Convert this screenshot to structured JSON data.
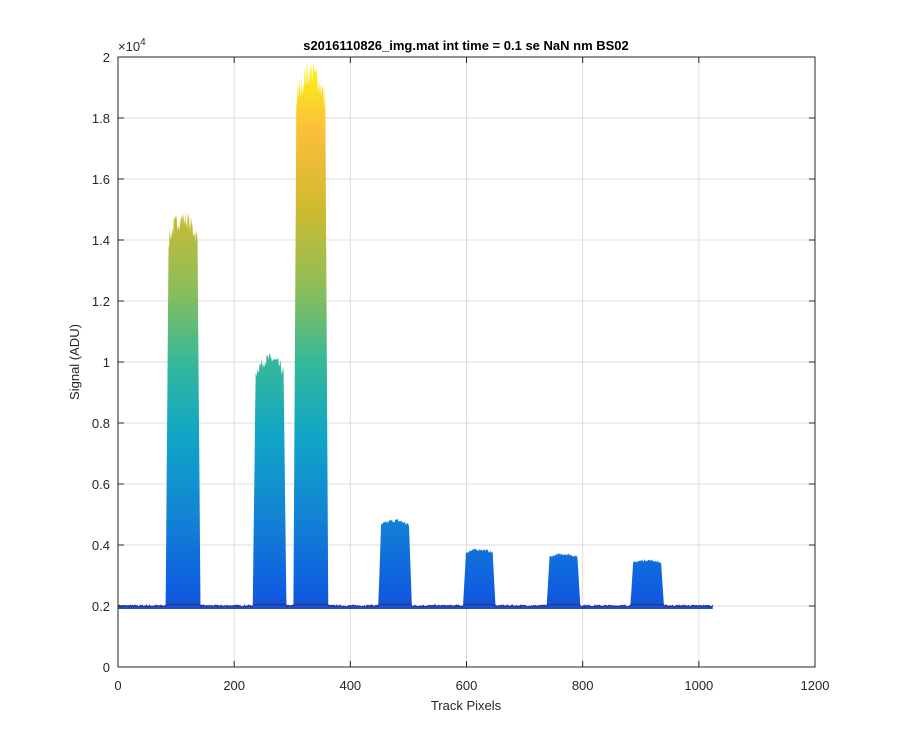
{
  "chart_data": {
    "type": "area",
    "title": "s2016110826_img.mat int time = 0.1 se  NaN nm BS02",
    "xlabel": "Track Pixels",
    "ylabel": "Signal (ADU)",
    "xlim": [
      0,
      1200
    ],
    "ylim": [
      0,
      20000
    ],
    "xticks": [
      0,
      200,
      400,
      600,
      800,
      1000,
      1200
    ],
    "yticks": [
      0,
      2000,
      4000,
      6000,
      8000,
      10000,
      12000,
      14000,
      16000,
      18000,
      20000
    ],
    "ytick_labels": [
      "0",
      "0.2",
      "0.4",
      "0.6",
      "0.8",
      "1",
      "1.2",
      "1.4",
      "1.6",
      "1.8",
      "2"
    ],
    "xtick_labels": [
      "0",
      "200",
      "400",
      "600",
      "800",
      "1000",
      "1200"
    ],
    "y_exponent_label": "×10^4",
    "grid": true,
    "baseline": 2000,
    "data_x_range": [
      1,
      1024
    ],
    "colormap": "parula",
    "peaks": [
      {
        "x_start": 82,
        "x_end": 142,
        "peak": 14700
      },
      {
        "x_start": 232,
        "x_end": 290,
        "peak": 10100
      },
      {
        "x_start": 302,
        "x_end": 362,
        "peak": 19500
      },
      {
        "x_start": 448,
        "x_end": 506,
        "peak": 4800
      },
      {
        "x_start": 594,
        "x_end": 650,
        "peak": 3850
      },
      {
        "x_start": 738,
        "x_end": 796,
        "peak": 3700
      },
      {
        "x_start": 882,
        "x_end": 940,
        "peak": 3500
      }
    ]
  }
}
